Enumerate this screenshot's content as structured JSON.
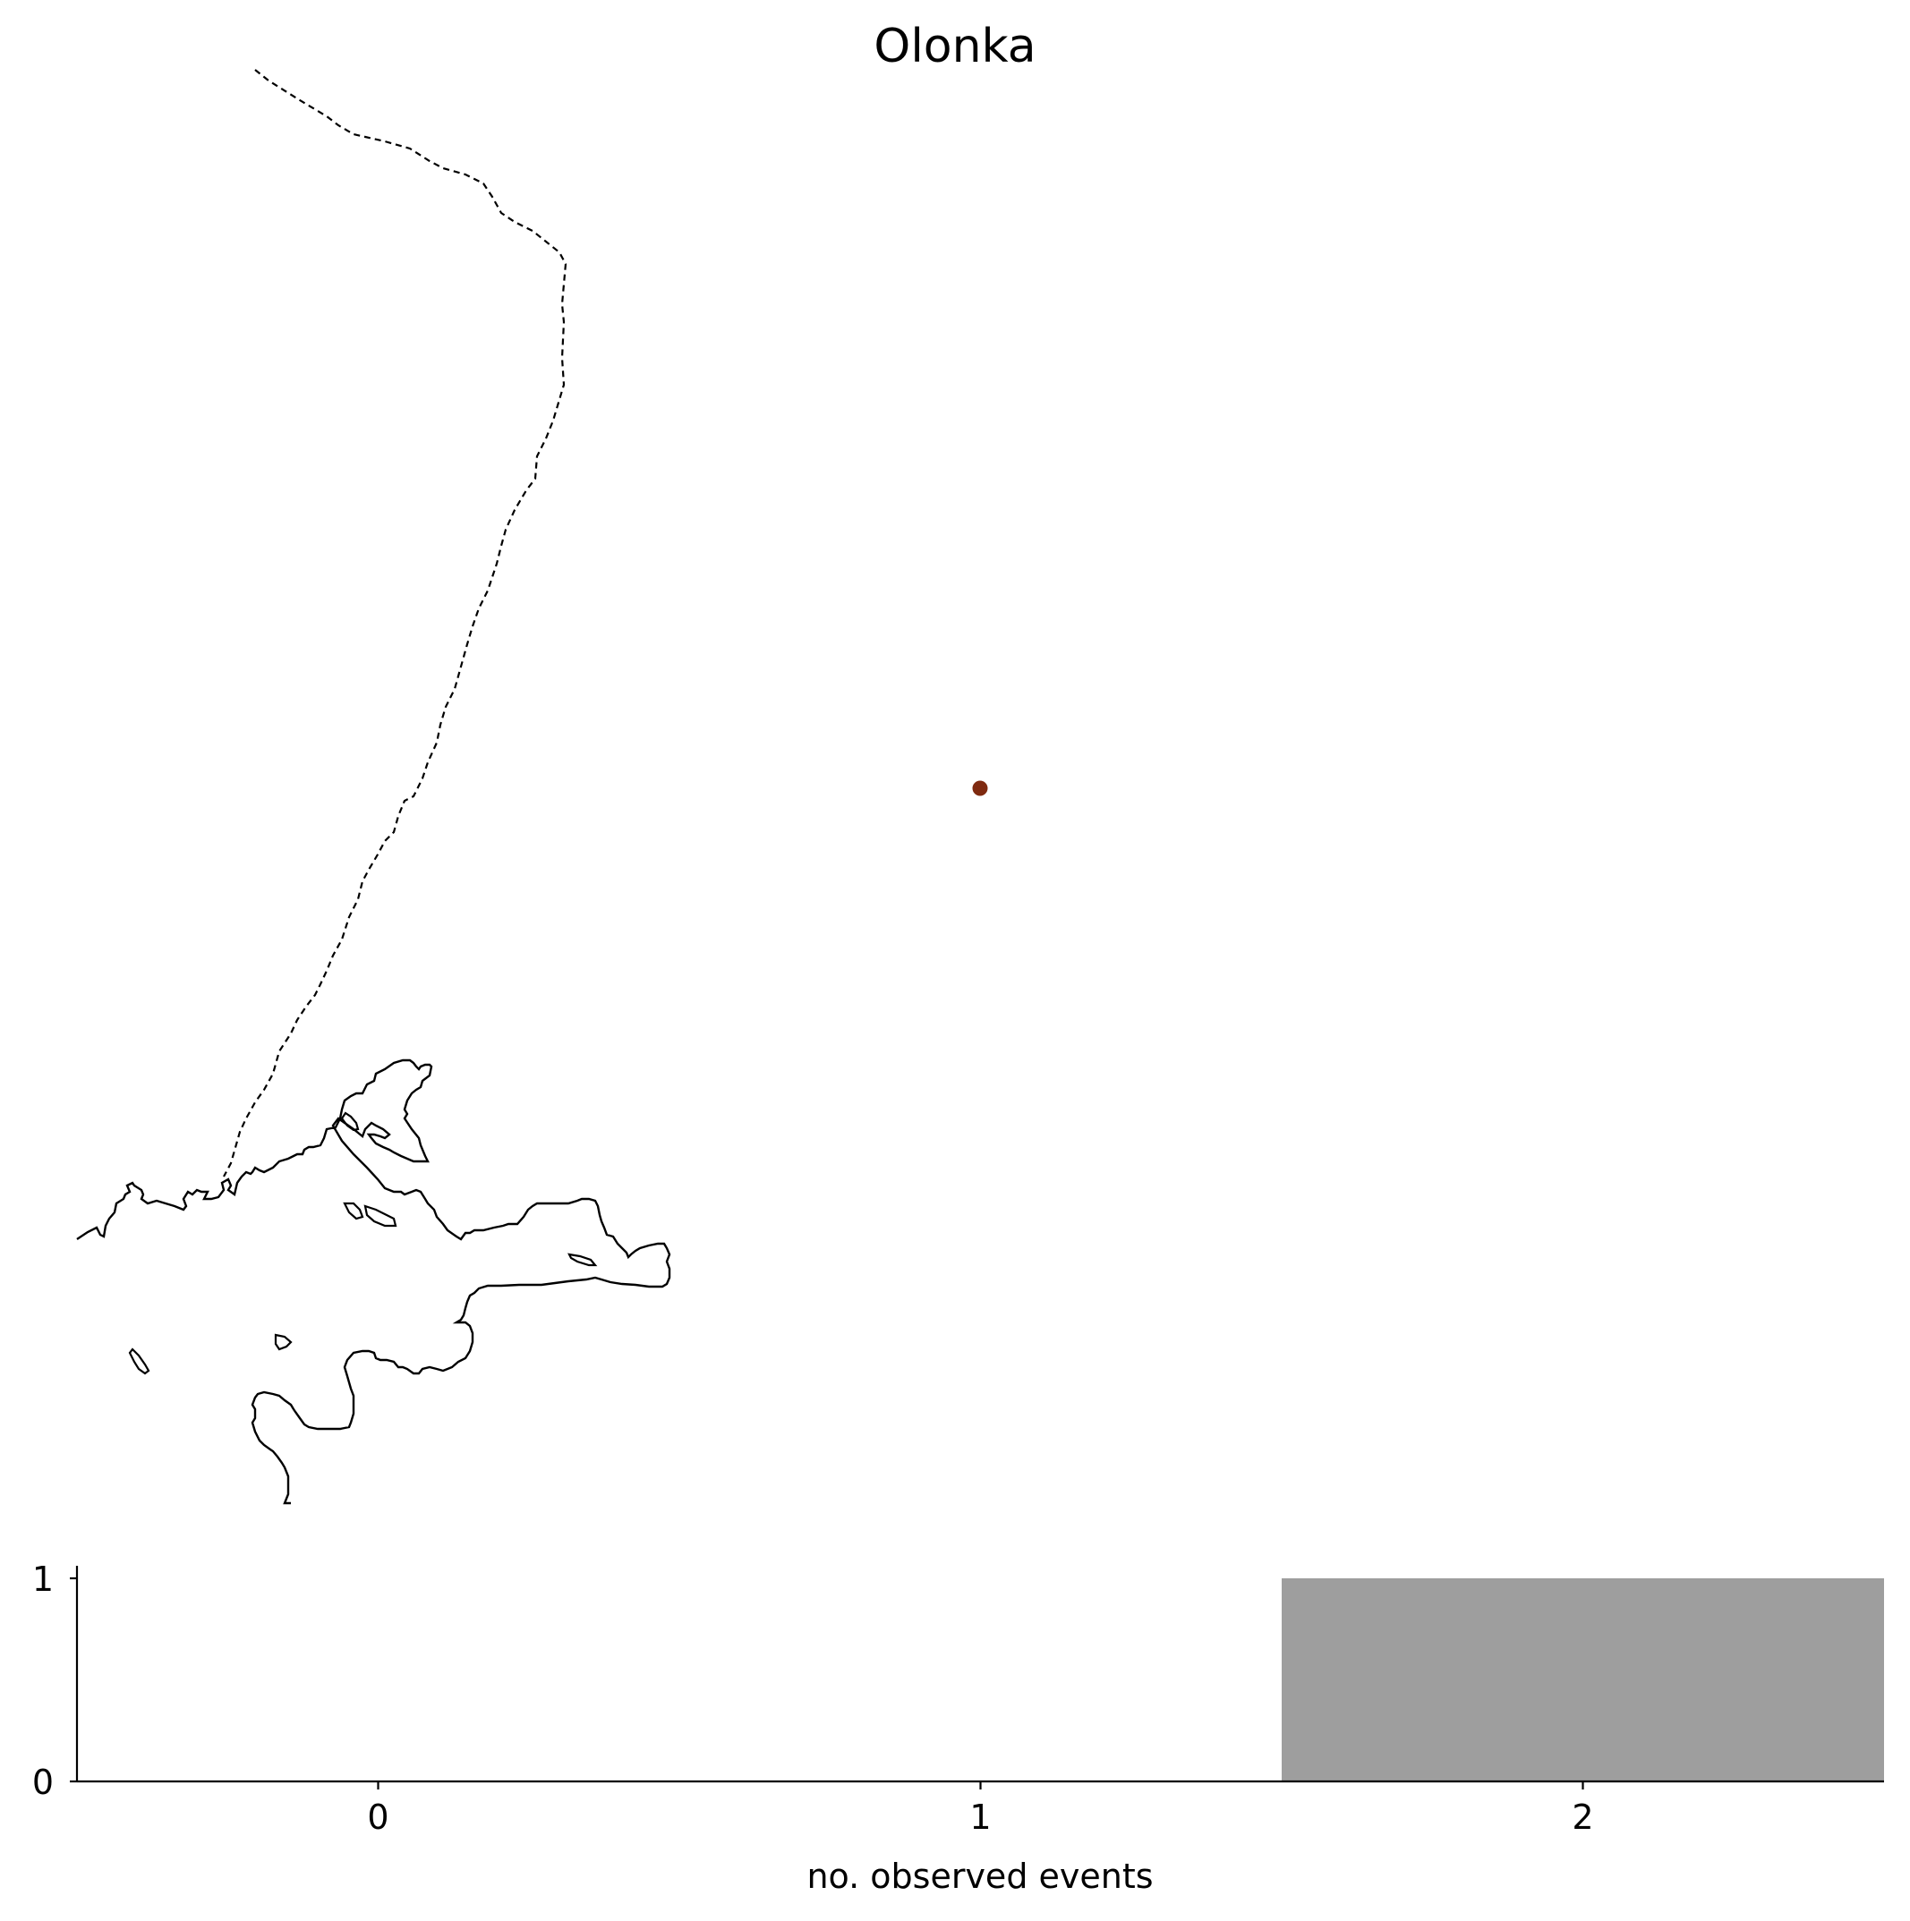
{
  "title": "Olonka",
  "map": {
    "marker_color": "#7f2a10",
    "coastline_style": "solid",
    "border_style": "dashed"
  },
  "chart_data": {
    "type": "bar",
    "categories": [
      "0",
      "1",
      "2"
    ],
    "x": [
      0,
      1,
      2
    ],
    "values": [
      0,
      0,
      1
    ],
    "xlabel": "no. observed events",
    "ylabel": "",
    "xlim": [
      -0.5,
      2.5
    ],
    "ylim": [
      0,
      1
    ],
    "yticks": [
      "0",
      "1"
    ],
    "bar_color": "#9e9e9e",
    "grid": false
  }
}
